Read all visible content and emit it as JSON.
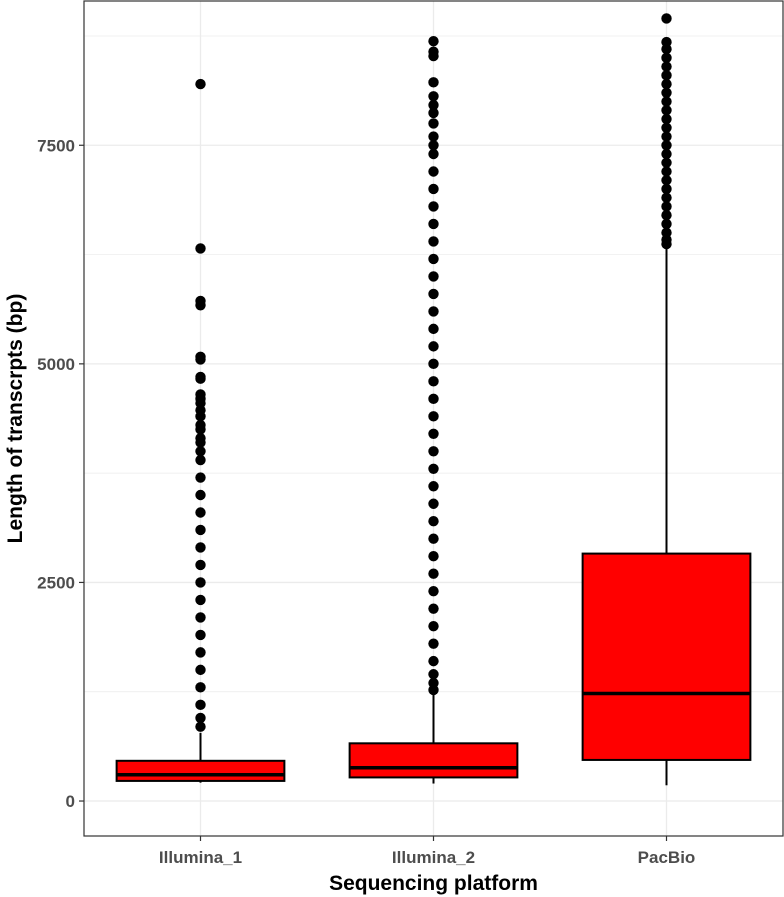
{
  "chart_data": {
    "type": "boxplot",
    "title": "",
    "xlabel": "Sequencing platform",
    "ylabel": "Length of transcrpts (bp)",
    "ylim": [
      -400,
      9150
    ],
    "yticks": [
      0,
      2500,
      5000,
      7500
    ],
    "grid": true,
    "categories": [
      "Illumina_1",
      "Illumina_2",
      "PacBio"
    ],
    "fill_color": "#ff0000",
    "outline_color": "#000000",
    "series": [
      {
        "category": "Illumina_1",
        "whisker_low": 210,
        "q1": 230,
        "median": 300,
        "q3": 460,
        "whisker_high": 780,
        "outliers": [
          8200,
          6320,
          5720,
          5670,
          5080,
          5050,
          4850,
          4830,
          4650,
          4600,
          4550,
          4470,
          4400,
          4300,
          4250,
          4150,
          4100,
          4000,
          3900,
          3700,
          3500,
          3300,
          3100,
          2900,
          2700,
          2500,
          2300,
          2100,
          1900,
          1700,
          1500,
          1300,
          1100,
          950,
          850
        ]
      },
      {
        "category": "Illumina_2",
        "whisker_low": 200,
        "q1": 270,
        "median": 380,
        "q3": 660,
        "whisker_high": 1230,
        "outliers": [
          8690,
          8570,
          8520,
          8220,
          8060,
          7960,
          7870,
          7750,
          7600,
          7500,
          7400,
          7200,
          7000,
          6800,
          6600,
          6400,
          6200,
          6000,
          5800,
          5600,
          5400,
          5200,
          5000,
          4800,
          4600,
          4400,
          4200,
          4000,
          3800,
          3600,
          3400,
          3200,
          3000,
          2800,
          2600,
          2400,
          2200,
          2000,
          1800,
          1600,
          1450,
          1350,
          1270
        ]
      },
      {
        "category": "PacBio",
        "whisker_low": 180,
        "q1": 470,
        "median": 1230,
        "q3": 2830,
        "whisker_high": 6330,
        "outliers": [
          8950,
          8680,
          8600,
          8500,
          8400,
          8300,
          8200,
          8100,
          8000,
          7900,
          7800,
          7700,
          7600,
          7500,
          7400,
          7300,
          7200,
          7100,
          7000,
          6900,
          6800,
          6700,
          6600,
          6500,
          6420,
          6370
        ]
      }
    ]
  }
}
